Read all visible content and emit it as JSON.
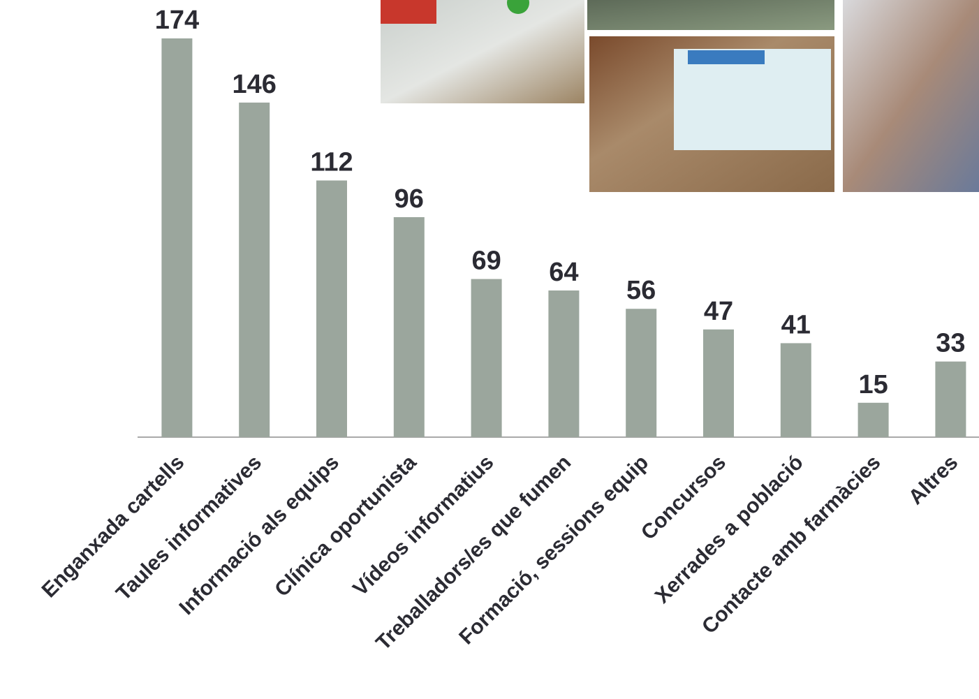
{
  "chart_data": {
    "type": "bar",
    "categories": [
      "Enganxada cartells",
      "Taules informatives",
      "Informació als equips",
      "Clínica oportunista",
      "Vídeos informatius",
      "Treballadors/es que fumen",
      "Formació, sessions equip",
      "Concursos",
      "Xerrades a població",
      "Contacte amb farmàcies",
      "Altres"
    ],
    "values": [
      174,
      146,
      112,
      96,
      69,
      64,
      56,
      47,
      41,
      15,
      33
    ],
    "color": "#9ba69d",
    "ylim": [
      0,
      190
    ]
  }
}
